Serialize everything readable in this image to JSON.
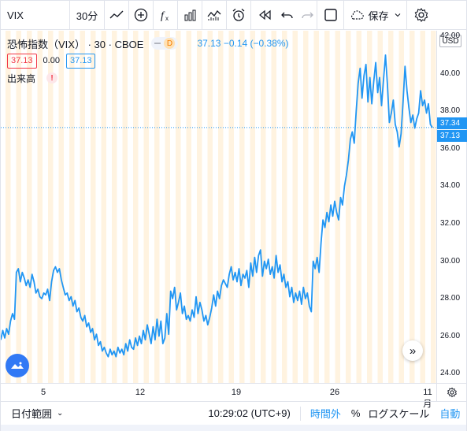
{
  "toolbar": {
    "symbol": "VIX",
    "interval": "30分",
    "save_label": "保存"
  },
  "legend": {
    "title": "恐怖指数（VIX）",
    "interval": "30",
    "exchange": "CBOE",
    "status_letter": "D",
    "last": "37.13",
    "change": "−0.14",
    "change_pct": "(−0.38%)",
    "sell": "37.13",
    "spread": "0.00",
    "buy": "37.13",
    "volume_label": "出来高",
    "volume_warning": "!"
  },
  "price_axis": {
    "currency": "USD",
    "labels": [
      "42.00",
      "40.00",
      "38.00",
      "36.00",
      "34.00",
      "32.00",
      "30.00",
      "28.00",
      "26.00",
      "24.00"
    ],
    "tag_upper": "37.34",
    "tag_lower": "37.13"
  },
  "time_axis": {
    "labels": [
      "5",
      "12",
      "19",
      "26",
      "11月"
    ]
  },
  "bottom_bar": {
    "date_range": "日付範囲",
    "clock": "10:29:02 (UTC+9)",
    "extended_hours": "時間外",
    "percent": "%",
    "log_scale": "ログスケール",
    "auto": "自動"
  },
  "colors": {
    "line": "#2196f3",
    "session_band": "#fff3e0",
    "accent": "#2196f3",
    "negative": "#f23645"
  },
  "chart_data": {
    "type": "line",
    "ylim": [
      23.5,
      42.3
    ],
    "x_ticks": [
      "5",
      "12",
      "19",
      "26",
      "11月"
    ],
    "series": [
      {
        "values": [
          25.8,
          26.3,
          25.9,
          26.4,
          26.1,
          26.8,
          27.2,
          26.9,
          29.4,
          29.6,
          28.9,
          29.4,
          29.1,
          28.7,
          29.0,
          28.6,
          29.3,
          28.9,
          28.3,
          28.5,
          28.1,
          28.0,
          28.3,
          28.2,
          28.5,
          27.9,
          28.9,
          29.5,
          29.7,
          29.4,
          29.6,
          29.0,
          28.6,
          28.2,
          28.3,
          27.9,
          28.1,
          27.6,
          27.9,
          27.3,
          27.5,
          27.0,
          26.8,
          27.1,
          26.5,
          26.7,
          26.2,
          26.4,
          25.8,
          26.1,
          25.5,
          25.7,
          25.2,
          25.4,
          25.1,
          24.9,
          25.3,
          25.0,
          25.2,
          24.9,
          25.4,
          25.1,
          25.3,
          25.0,
          25.6,
          25.2,
          25.8,
          25.4,
          25.3,
          25.9,
          25.5,
          26.0,
          25.6,
          26.3,
          25.8,
          26.6,
          26.1,
          25.6,
          26.5,
          25.8,
          26.9,
          26.0,
          26.8,
          25.6,
          25.9,
          27.2,
          26.1,
          28.4,
          28.0,
          28.6,
          27.4,
          27.8,
          28.3,
          27.2,
          27.6,
          26.9,
          27.1,
          26.8,
          27.4,
          27.0,
          28.1,
          27.2,
          27.8,
          27.4,
          26.8,
          27.1,
          26.6,
          27.0,
          27.5,
          28.2,
          27.6,
          28.4,
          28.0,
          28.7,
          29.0,
          28.8,
          28.6,
          29.3,
          29.7,
          29.0,
          29.4,
          28.9,
          29.6,
          28.7,
          29.3,
          29.1,
          29.5,
          28.6,
          29.9,
          29.2,
          30.2,
          29.4,
          30.3,
          30.6,
          29.2,
          30.0,
          29.6,
          30.1,
          29.3,
          29.7,
          29.1,
          30.3,
          29.4,
          29.8,
          28.9,
          29.3,
          28.6,
          28.9,
          28.1,
          28.6,
          27.8,
          28.3,
          27.9,
          28.4,
          27.7,
          28.6,
          28.0,
          28.3,
          27.6,
          27.3,
          30.0,
          29.6,
          30.2,
          29.4,
          31.0,
          32.2,
          31.8,
          32.6,
          32.1,
          33.0,
          32.4,
          33.2,
          32.6,
          32.2,
          33.4,
          33.0,
          34.0,
          34.6,
          35.4,
          36.5,
          36.9,
          36.3,
          38.0,
          39.5,
          40.3,
          38.7,
          39.9,
          40.5,
          38.5,
          39.8,
          38.4,
          39.6,
          40.6,
          39.0,
          39.8,
          38.3,
          39.7,
          41.0,
          39.4,
          37.4,
          37.9,
          38.6,
          37.3,
          36.9,
          36.1,
          36.8,
          38.5,
          40.4,
          39.1,
          38.2,
          37.4,
          37.8,
          37.1,
          37.6,
          37.9,
          39.1,
          38.3,
          38.6,
          37.9,
          38.4,
          37.3,
          37.13
        ]
      }
    ]
  }
}
